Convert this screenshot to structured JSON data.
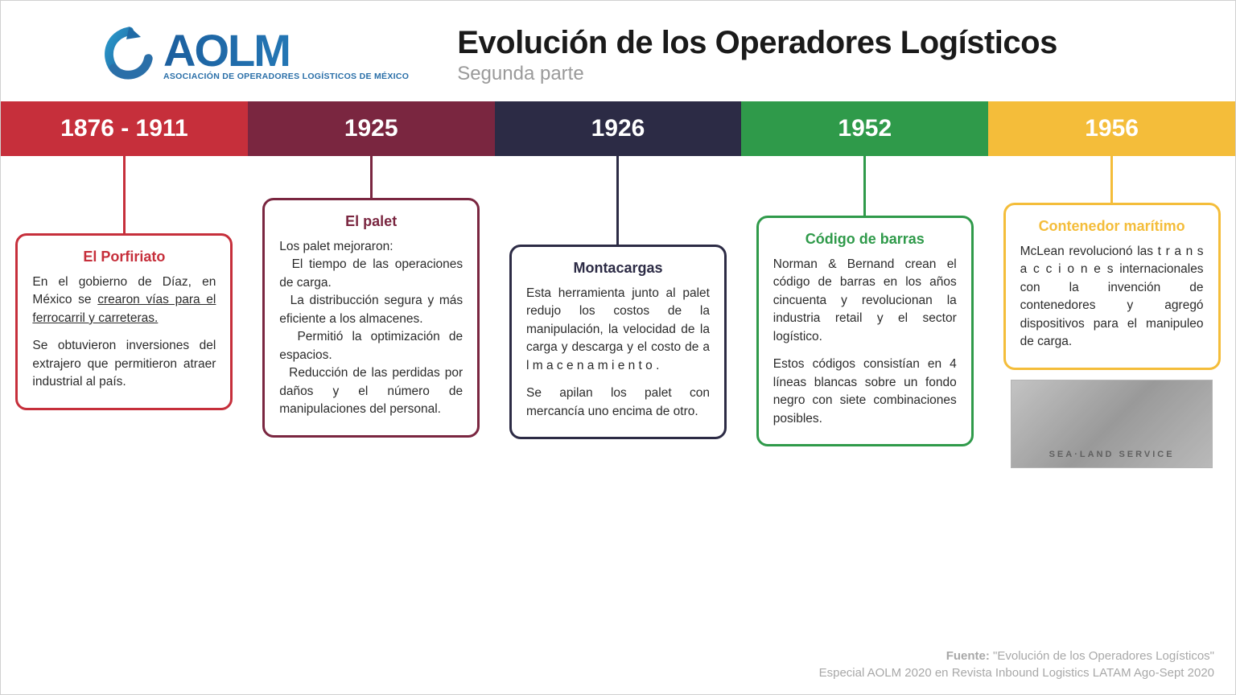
{
  "logo": {
    "acronym": "AOLM",
    "tagline": "ASOCIACIÓN DE OPERADORES LOGÍSTICOS DE MÉXICO",
    "mark_primary": "#1f6aa5",
    "mark_accent": "#2a97c9",
    "text_gradient_from": "#1c5f9e",
    "text_gradient_to": "#2a8cc9"
  },
  "header": {
    "title": "Evolución de los Operadores Logísticos",
    "subtitle": "Segunda parte",
    "title_color": "#1a1a1a",
    "subtitle_color": "#9a9a9a"
  },
  "timeline": {
    "type": "timeline",
    "year_font_color": "#ffffff",
    "items": [
      {
        "year": "1876 - 1911",
        "bar_color": "#c62f3b",
        "connector_height": 96,
        "accent": "#c62f3b",
        "title": "El Porfiriato",
        "body_html": "En el gobierno de Díaz, en México se <span class='underline'>crearon vías para el ferrocarril y carreteras.</span>||Se obtuvieron inversiones del extrajero que permitieron atraer industrial al país."
      },
      {
        "year": "1925",
        "bar_color": "#7a2640",
        "connector_height": 52,
        "accent": "#7a2640",
        "title": "El palet",
        "body_html": "Los palet mejoraron:<br>&nbsp;&nbsp;El tiempo de las operaciones de carga.<br>&nbsp;&nbsp;La distribucción segura y más eficiente a los almacenes.<br>&nbsp;&nbsp;Permitió la optimización de espacios.<br>&nbsp;&nbsp;Reducción de las perdidas por daños y el número de manipulaciones del personal."
      },
      {
        "year": "1926",
        "bar_color": "#2c2b45",
        "connector_height": 110,
        "accent": "#2c2b45",
        "title": "Montacargas",
        "body_html": "Esta herramienta junto al palet redujo los costos de la manipulación, la velocidad de la carga y descarga y el costo de a l m a c e n a m i e n t o .||Se apilan los palet con mercancía uno encima de otro."
      },
      {
        "year": "1952",
        "bar_color": "#2f9a4a",
        "connector_height": 74,
        "accent": "#2f9a4a",
        "title": "Código de barras",
        "body_html": "Norman & Bernand crean el código de barras en los años cincuenta y revolucionan la industria retail y el sector logístico.||Estos códigos consistían en 4 líneas blancas sobre un fondo negro con siete combinaciones posibles."
      },
      {
        "year": "1956",
        "bar_color": "#f4bd3a",
        "connector_height": 58,
        "accent": "#f4bd3a",
        "title": "Contenedor marítimo",
        "body_html": "McLean revolucionó las t r a n s a c c i o n e s internacionales con la invención de contenedores y agregó dispositivos para el manipuleo de carga.",
        "has_image": true
      }
    ]
  },
  "footer": {
    "label": "Fuente: ",
    "line1": "\"Evolución de los Operadores Logísticos\"",
    "line2": "Especial AOLM 2020 en Revista Inbound Logistics LATAM Ago-Sept 2020",
    "color": "#a8a8a8"
  }
}
